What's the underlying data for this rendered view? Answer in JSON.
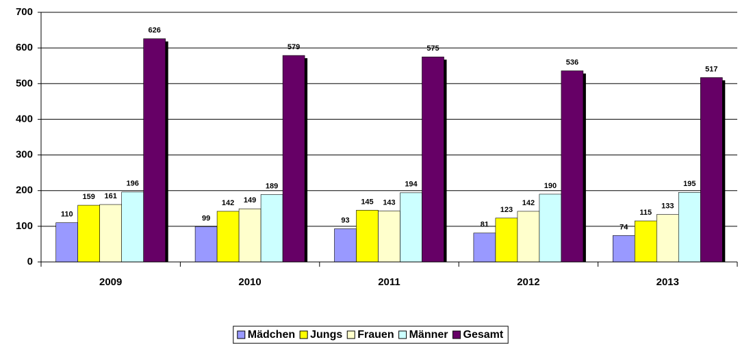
{
  "chart_data": {
    "type": "bar",
    "categories": [
      "2009",
      "2010",
      "2011",
      "2012",
      "2013"
    ],
    "series": [
      {
        "name": "Mädchen",
        "color": "#9999ff",
        "values": [
          110,
          99,
          93,
          81,
          74
        ]
      },
      {
        "name": "Jungs",
        "color": "#ffff00",
        "values": [
          159,
          142,
          145,
          123,
          115
        ]
      },
      {
        "name": "Frauen",
        "color": "#ffffcc",
        "values": [
          161,
          149,
          143,
          142,
          133
        ]
      },
      {
        "name": "Männer",
        "color": "#ccffff",
        "values": [
          196,
          189,
          194,
          190,
          195
        ]
      },
      {
        "name": "Gesamt",
        "color": "#660066",
        "values": [
          626,
          579,
          575,
          536,
          517
        ]
      }
    ],
    "ylim": [
      0,
      700
    ],
    "yticks": [
      0,
      100,
      200,
      300,
      400,
      500,
      600,
      700
    ],
    "grid": true,
    "legend": "bottom"
  }
}
